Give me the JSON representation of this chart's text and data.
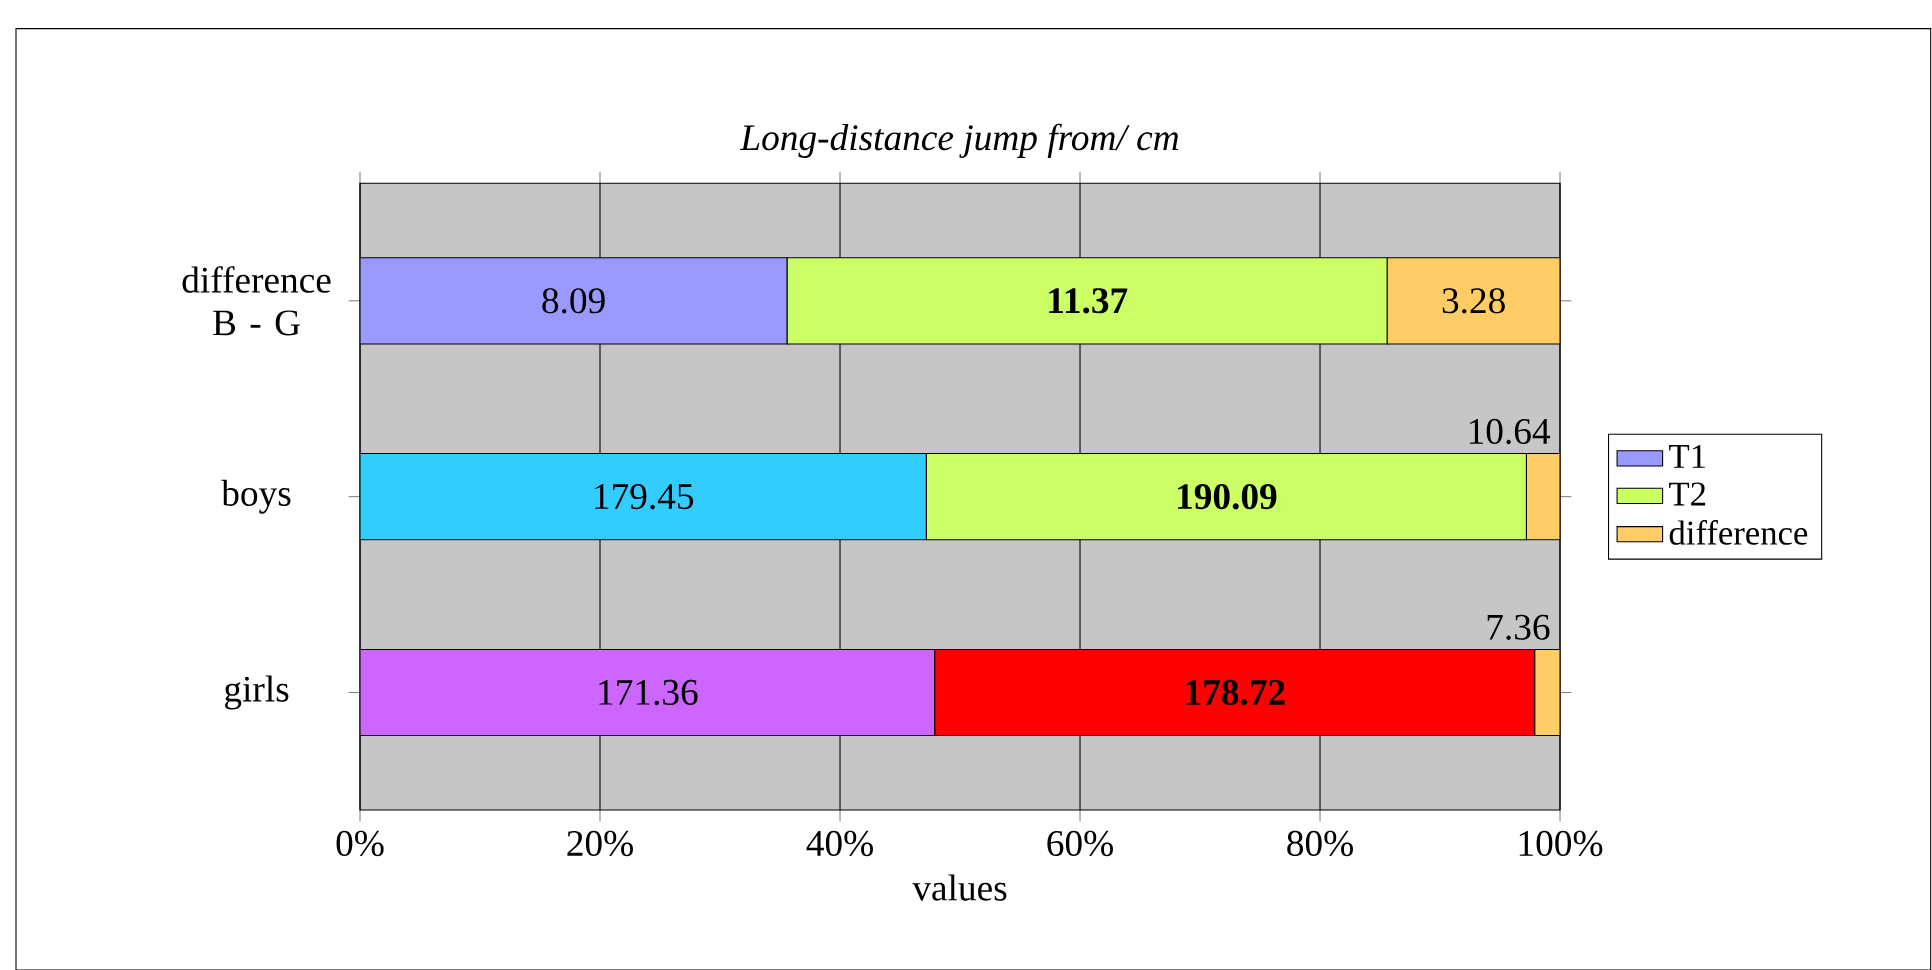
{
  "chart_data": {
    "type": "bar",
    "orientation": "horizontal",
    "stacked": true,
    "title": "*Long-distance jump from/ cm*",
    "xlabel": "values",
    "categories": [
      "difference B - G",
      "boys",
      "girls"
    ],
    "series": [
      {
        "name": "T1",
        "color": "#9999ff",
        "colors": [
          "#9999ff",
          "#33ccff",
          "#cc66ff"
        ],
        "values": [
          35.6,
          47.2,
          47.9
        ]
      },
      {
        "name": "T2",
        "color": "#ccff66",
        "colors": [
          "#ccff66",
          "#ccff66",
          "#ff0000"
        ],
        "values": [
          50.0,
          50.0,
          50.0
        ]
      },
      {
        "name": "difference",
        "color": "#ffcc66",
        "colors": [
          "#ffcc66",
          "#ffcc66",
          "#ffcc66"
        ],
        "values": [
          14.4,
          2.8,
          2.1
        ]
      }
    ],
    "annotations": [
      "8.09",
      "**11.37**",
      "3.28",
      "179.45",
      "**190.09**",
      "10.64",
      "171.36",
      "**178.72**",
      "7.36"
    ],
    "xlim": [
      0,
      100
    ],
    "xticks": [
      {
        "value": 0,
        "label": "0%"
      },
      {
        "value": 20,
        "label": "20%"
      },
      {
        "value": 40,
        "label": "40%"
      },
      {
        "value": 60,
        "label": "60%"
      },
      {
        "value": 80,
        "label": "80%"
      },
      {
        "value": 100,
        "label": "100%"
      }
    ],
    "grid": "x",
    "legend": "right"
  }
}
